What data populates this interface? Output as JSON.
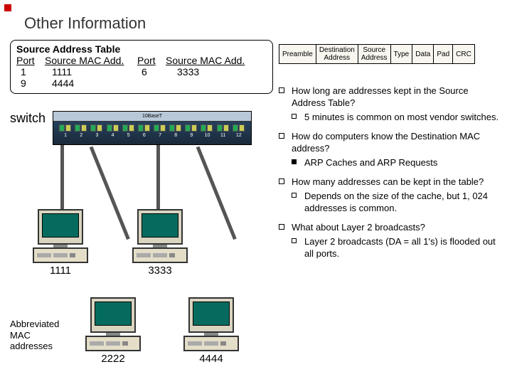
{
  "title": "Other Information",
  "sat": {
    "header": "Source Address Table",
    "col1": "Port",
    "col2": "Source MAC Add.",
    "col3": "Port",
    "col4": "Source MAC Add.",
    "rows": [
      {
        "p1": "1",
        "m1": "1111",
        "p2": "6",
        "m2": "3333"
      },
      {
        "p1": "9",
        "m1": "4444",
        "p2": "",
        "m2": ""
      }
    ]
  },
  "frame": [
    "Preamble",
    "Destination\nAddress",
    "Source\nAddress",
    "Type",
    "Data",
    "Pad",
    "CRC"
  ],
  "switch_label": "switch",
  "switch_top": "10BaseT",
  "ports": [
    "1",
    "2",
    "3",
    "4",
    "5",
    "6",
    "7",
    "8",
    "9",
    "10",
    "11",
    "12"
  ],
  "pcs": {
    "pc1": "1111",
    "pc2": "3333",
    "pc3": "2222",
    "pc4": "4444"
  },
  "abbrev": "Abbreviated\nMAC\naddresses",
  "bullets": [
    {
      "text": "How long are addresses kept in the Source Address Table?",
      "subs": [
        {
          "type": "open",
          "text": "5 minutes is common on most vendor switches."
        }
      ]
    },
    {
      "text": "How do computers know the Destination MAC address?",
      "subs": [
        {
          "type": "fill",
          "text": "ARP Caches and ARP Requests"
        }
      ]
    },
    {
      "text": "How many addresses can be kept in the table?",
      "subs": [
        {
          "type": "open",
          "text": "Depends on the size of the cache, but 1, 024 addresses is common."
        }
      ]
    },
    {
      "text": "What about Layer 2 broadcasts?",
      "subs": [
        {
          "type": "open",
          "text": "Layer 2 broadcasts (DA = all 1's) is flooded out all ports."
        }
      ]
    }
  ],
  "colors": {
    "accent": "#c00",
    "switch_bg": "#1f3a52"
  }
}
